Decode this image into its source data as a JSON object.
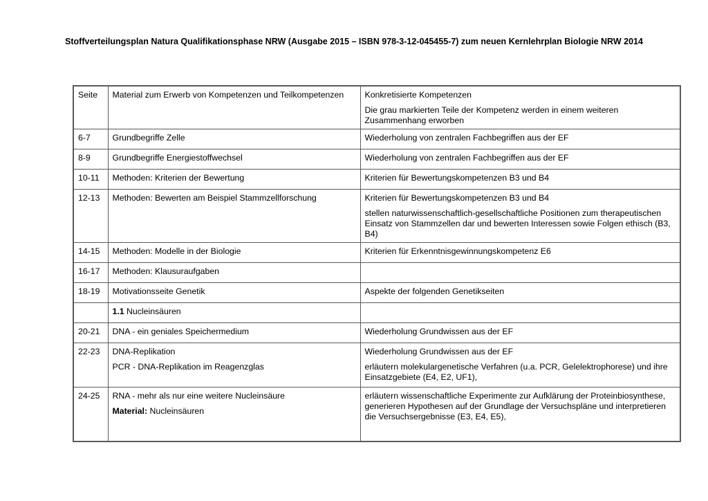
{
  "document": {
    "title": "Stoffverteilungsplan Natura Qualifikationsphase NRW (Ausgabe 2015 – ISBN 978-3-12-045455-7) zum neuen Kernlehrplan Biologie NRW 2014"
  },
  "colors": {
    "background": "#ffffff",
    "text": "#000000",
    "table_border": "#595959"
  },
  "table": {
    "header": {
      "seite": "Seite",
      "material": "Material zum Erwerb von Kompetenzen und Teilkompetenzen",
      "kompetenzen_title": "Konkretisierte Kompetenzen",
      "kompetenzen_note": "Die grau markierten Teile der Kompetenz werden in einem weiteren Zusammenhang erworben"
    },
    "rows": [
      {
        "seite": "6-7",
        "material": [
          {
            "text": "Grundbegriffe Zelle"
          }
        ],
        "kompetenzen": [
          "Wiederholung von zentralen Fachbegriffen aus der EF"
        ]
      },
      {
        "seite": "8-9",
        "material": [
          {
            "text": "Grundbegriffe Energiestoffwechsel"
          }
        ],
        "kompetenzen": [
          "Wiederholung von zentralen Fachbegriffen aus der EF"
        ]
      },
      {
        "seite": "10-11",
        "material": [
          {
            "text": "Methoden: Kriterien der Bewertung"
          }
        ],
        "kompetenzen": [
          "Kriterien für Bewertungskompetenzen B3 und B4"
        ]
      },
      {
        "seite": "12-13",
        "material": [
          {
            "text": "Methoden: Bewerten am Beispiel Stammzellforschung"
          }
        ],
        "kompetenzen": [
          "Kriterien für Bewertungskompetenzen B3 und B4",
          "stellen naturwissenschaftlich-gesellschaftliche Positionen zum therapeutischen Einsatz von Stammzellen dar und bewerten Interessen sowie Folgen ethisch (B3, B4)"
        ]
      },
      {
        "seite": "14-15",
        "material": [
          {
            "text": "Methoden: Modelle in der Biologie"
          }
        ],
        "kompetenzen": [
          "Kriterien für Erkenntnisgewinnungskompetenz E6"
        ]
      },
      {
        "seite": "16-17",
        "material": [
          {
            "text": "Methoden: Klausuraufgaben"
          }
        ],
        "kompetenzen": []
      },
      {
        "seite": "18-19",
        "material": [
          {
            "text": "Motivationsseite Genetik"
          }
        ],
        "kompetenzen": [
          "Aspekte der folgenden Genetikseiten"
        ]
      },
      {
        "seite": "",
        "material": [
          {
            "bold": "1.1",
            "text": " Nucleinsäuren"
          }
        ],
        "kompetenzen": []
      },
      {
        "seite": "20-21",
        "material": [
          {
            "text": "DNA - ein geniales Speichermedium"
          }
        ],
        "kompetenzen": [
          "Wiederholung Grundwissen aus der EF"
        ]
      },
      {
        "seite": "22-23",
        "material": [
          {
            "text": "DNA-Replikation"
          },
          {
            "text": "PCR - DNA-Replikation im Reagenzglas"
          }
        ],
        "kompetenzen": [
          "Wiederholung Grundwissen aus der EF",
          "erläutern molekulargenetische Verfahren (u.a. PCR, Gelelektrophorese) und ihre Einsatzgebiete (E4, E2, UF1),"
        ]
      },
      {
        "seite": "24-25",
        "material": [
          {
            "text": "RNA - mehr als nur eine weitere Nucleinsäure"
          },
          {
            "bold": "Material:",
            "text": " Nucleinsäuren"
          }
        ],
        "kompetenzen": [
          "erläutern wissenschaftliche Experimente zur Aufklärung der Proteinbiosynthese, generieren Hypothesen auf der Grundlage der Versuchspläne und interpretieren die Versuchsergebnisse (E3, E4, E5),"
        ]
      }
    ]
  }
}
